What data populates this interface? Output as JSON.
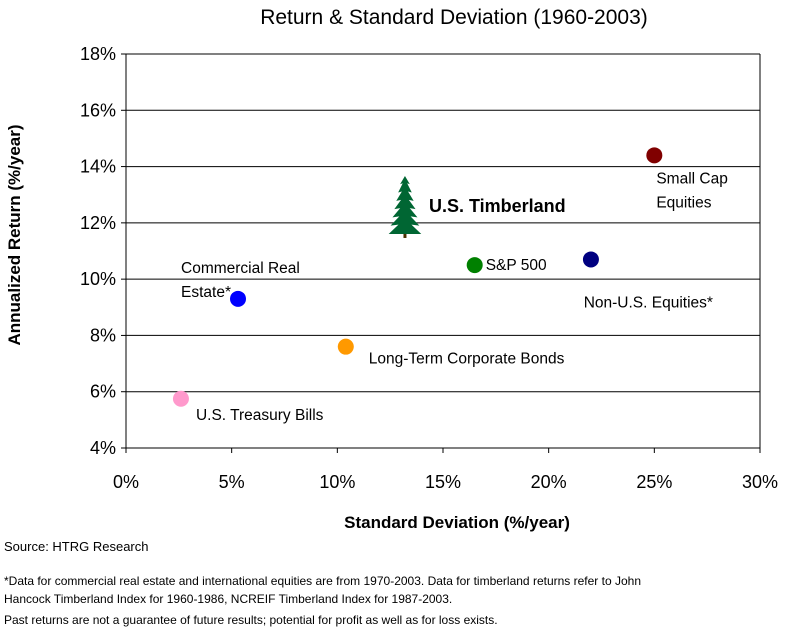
{
  "chart_data": {
    "type": "scatter",
    "title": "Return & Standard Deviation (1960-2003)",
    "xlabel": "Standard Deviation (%/year)",
    "ylabel": "Annualized Return (%/year)",
    "xlim": [
      0,
      30
    ],
    "ylim": [
      4,
      18
    ],
    "x_ticks": [
      "0%",
      "5%",
      "10%",
      "15%",
      "20%",
      "25%",
      "30%"
    ],
    "y_ticks": [
      "4%",
      "6%",
      "8%",
      "10%",
      "12%",
      "14%",
      "16%",
      "18%"
    ],
    "grid": "horizontal",
    "legend": "none",
    "points": [
      {
        "label_lines": [
          "U.S. Treasury Bills"
        ],
        "x": 2.6,
        "y": 5.75,
        "color": "#ff99cc"
      },
      {
        "label_lines": [
          "Commercial Real",
          "Estate*"
        ],
        "x": 5.3,
        "y": 9.3,
        "color": "#0000ff"
      },
      {
        "label_lines": [
          "Long-Term Corporate Bonds"
        ],
        "x": 10.4,
        "y": 7.6,
        "color": "#ff9900"
      },
      {
        "label_lines": [
          "S&P 500"
        ],
        "x": 16.5,
        "y": 10.5,
        "color": "#008000"
      },
      {
        "label_lines": [
          "Non-U.S. Equities*"
        ],
        "x": 22.0,
        "y": 10.7,
        "color": "#000080"
      },
      {
        "label_lines": [
          "Small Cap",
          "Equities"
        ],
        "x": 25.0,
        "y": 14.4,
        "color": "#800000"
      }
    ],
    "timberland": {
      "label": "U.S. Timberland",
      "x": 13.2,
      "y": 12.6,
      "marker": "tree-icon",
      "color": "#006633"
    }
  },
  "source": "Source:  HTRG Research",
  "footnotes": [
    "*Data for commercial real estate and international equities are from 1970-2003. Data for timberland returns refer to John",
    "Hancock Timberland Index for 1960-1986, NCREIF Timberland Index for 1987-2003.",
    "Past returns are not a guarantee of future results; potential for profit as well as for loss exists."
  ]
}
